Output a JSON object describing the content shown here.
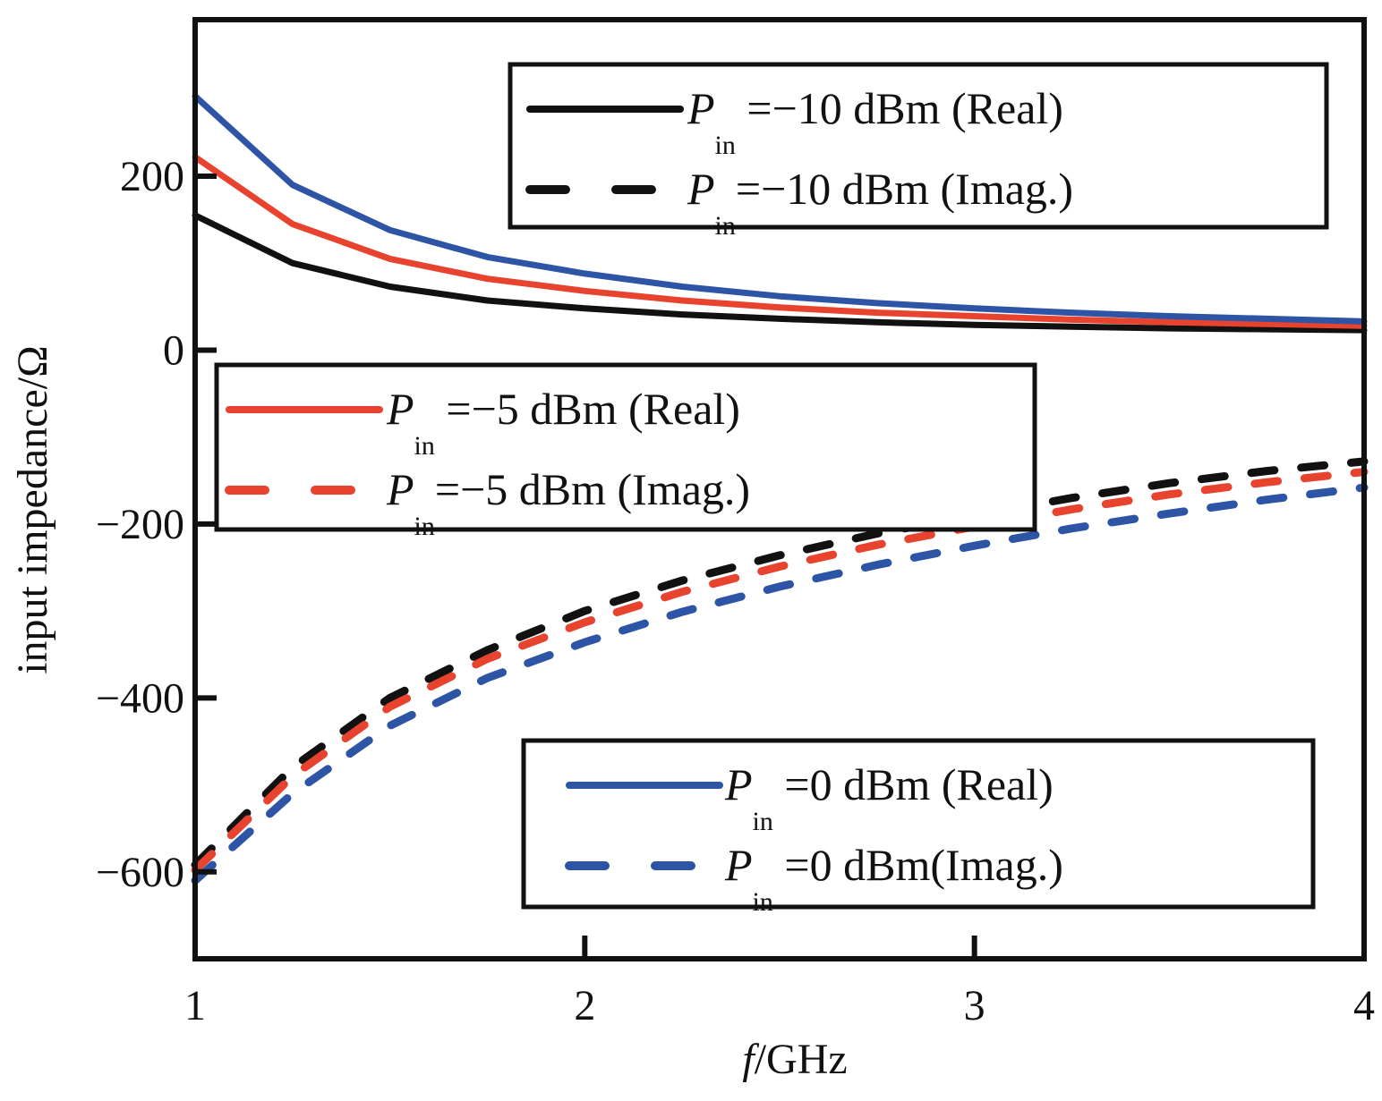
{
  "chart_data": {
    "type": "line",
    "xlabel": {
      "italic": "f",
      "rest": "/GHz"
    },
    "ylabel": "input impedance/Ω",
    "xlim": [
      1,
      4
    ],
    "ylim": [
      -700,
      380
    ],
    "x_ticks": [
      1,
      2,
      3,
      4
    ],
    "x_tick_labels": [
      "1",
      "2",
      "3",
      "4"
    ],
    "y_ticks": [
      200,
      0,
      -200,
      -400,
      -600
    ],
    "y_tick_labels": [
      "200",
      "0",
      "−200",
      "−400",
      "−600"
    ],
    "grid": false,
    "x": [
      1.0,
      1.25,
      1.5,
      1.75,
      2.0,
      2.25,
      2.5,
      2.75,
      3.0,
      3.25,
      3.5,
      3.75,
      4.0
    ],
    "series": [
      {
        "key": "m10_real",
        "color": "#111111",
        "dashed": false,
        "values": [
          155,
          100,
          73,
          57,
          48,
          41,
          36,
          32,
          29,
          27,
          25,
          24,
          23
        ]
      },
      {
        "key": "m10_imag",
        "color": "#111111",
        "dashed": true,
        "values": [
          -592,
          -480,
          -400,
          -345,
          -300,
          -265,
          -236,
          -211,
          -190,
          -170,
          -153,
          -139,
          -128
        ]
      },
      {
        "key": "m5_real",
        "color": "#e8432e",
        "dashed": false,
        "values": [
          222,
          145,
          105,
          82,
          68,
          57,
          49,
          43,
          39,
          35,
          32,
          30,
          28
        ]
      },
      {
        "key": "m5_imag",
        "color": "#e8432e",
        "dashed": true,
        "values": [
          -598,
          -490,
          -410,
          -355,
          -313,
          -278,
          -249,
          -224,
          -203,
          -183,
          -166,
          -152,
          -140
        ]
      },
      {
        "key": "p0_real",
        "color": "#2e55a5",
        "dashed": false,
        "values": [
          292,
          190,
          138,
          107,
          88,
          73,
          62,
          54,
          48,
          43,
          39,
          36,
          33
        ]
      },
      {
        "key": "p0_imag",
        "color": "#2e55a5",
        "dashed": true,
        "values": [
          -610,
          -510,
          -432,
          -377,
          -336,
          -301,
          -272,
          -247,
          -225,
          -205,
          -188,
          -172,
          -158
        ]
      }
    ]
  },
  "legends": [
    {
      "entries": [
        {
          "sym": "P",
          "sub": "in",
          "text": " =−10 dBm (Real)",
          "color": "#111111",
          "dashed": false
        },
        {
          "sym": "P",
          "sub": "in",
          "text": "=−10 dBm (Imag.)",
          "color": "#111111",
          "dashed": true
        }
      ]
    },
    {
      "entries": [
        {
          "sym": "P",
          "sub": "in",
          "text": " =−5 dBm (Real)",
          "color": "#e8432e",
          "dashed": false
        },
        {
          "sym": "P",
          "sub": "in",
          "text": "=−5 dBm (Imag.)",
          "color": "#e8432e",
          "dashed": true
        }
      ]
    },
    {
      "entries": [
        {
          "sym": "P",
          "sub": "in",
          "text": " =0 dBm (Real)",
          "color": "#2e55a5",
          "dashed": false
        },
        {
          "sym": "P",
          "sub": "in",
          "text": " =0 dBm(Imag.)",
          "color": "#2e55a5",
          "dashed": true
        }
      ]
    }
  ]
}
